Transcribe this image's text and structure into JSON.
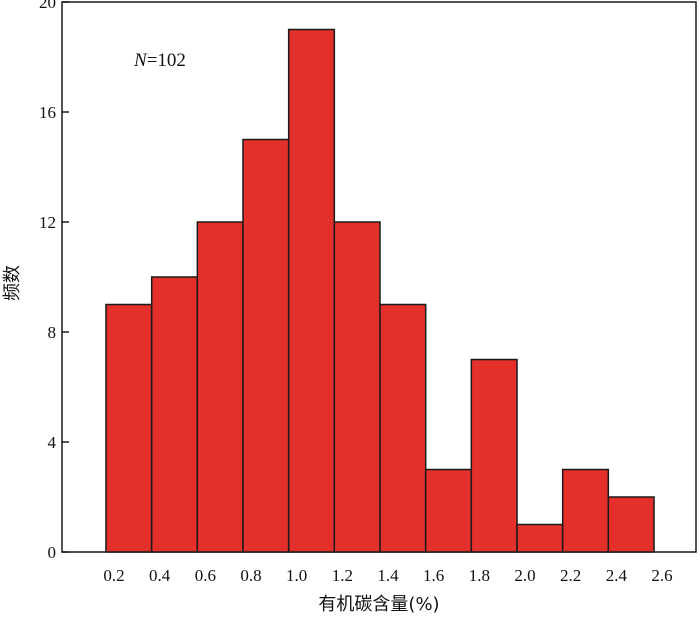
{
  "chart_data": {
    "type": "bar",
    "histogram": true,
    "bin_edges": [
      0.2,
      0.4,
      0.6,
      0.8,
      1.0,
      1.2,
      1.4,
      1.6,
      1.8,
      2.0,
      2.2,
      2.4,
      2.6
    ],
    "values": [
      9,
      10,
      12,
      15,
      19,
      12,
      9,
      3,
      7,
      1,
      3,
      2
    ],
    "x_tick_labels": [
      "0.2",
      "0.4",
      "0.6",
      "0.8",
      "1.0",
      "1.2",
      "1.4",
      "1.6",
      "1.8",
      "2.0",
      "2.2",
      "2.4",
      "2.6"
    ],
    "y_ticks": [
      0,
      4,
      8,
      12,
      16,
      20
    ],
    "y_tick_labels": [
      "0",
      "4",
      "8",
      "12",
      "16",
      "20"
    ],
    "ylim": [
      0,
      20
    ],
    "xlabel": "有机碳含量(%)",
    "ylabel": "频数",
    "annotation": {
      "var": "N",
      "eq": "=102"
    },
    "bar_color": "#e3302b",
    "bar_edge_color": "#1a1a1a",
    "grid": false
  }
}
